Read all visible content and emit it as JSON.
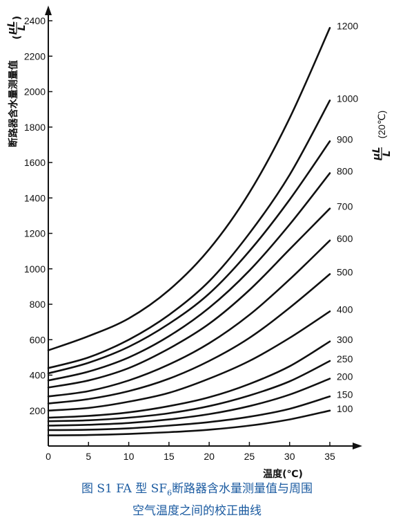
{
  "chart_data": {
    "type": "line",
    "xlabel": "温度(℃)",
    "ylabel": "断路器含水量测量值",
    "ylabel_unit_num": "μL",
    "ylabel_unit_den": "L",
    "series_label_num": "μL",
    "series_label_den": "L",
    "series_label_suffix": "(20℃)",
    "xlim": [
      0,
      35
    ],
    "ylim": [
      0,
      2400
    ],
    "x_ticks": [
      "0",
      "5",
      "10",
      "15",
      "20",
      "25",
      "30",
      "35"
    ],
    "y_ticks": [
      "200",
      "400",
      "600",
      "800",
      "1000",
      "1200",
      "1400",
      "1600",
      "1800",
      "2000",
      "2200",
      "2400"
    ],
    "x": [
      0,
      5,
      10,
      15,
      20,
      25,
      30,
      35
    ],
    "series": [
      {
        "name": "1200",
        "values": [
          540,
          620,
          720,
          880,
          1110,
          1430,
          1850,
          2360
        ]
      },
      {
        "name": "1000",
        "values": [
          440,
          500,
          600,
          740,
          930,
          1200,
          1530,
          1950
        ]
      },
      {
        "name": "900",
        "values": [
          410,
          470,
          560,
          690,
          860,
          1100,
          1390,
          1720
        ]
      },
      {
        "name": "800",
        "values": [
          370,
          420,
          500,
          620,
          780,
          990,
          1250,
          1540
        ]
      },
      {
        "name": "700",
        "values": [
          330,
          370,
          440,
          550,
          690,
          880,
          1110,
          1340
        ]
      },
      {
        "name": "600",
        "values": [
          280,
          310,
          370,
          460,
          580,
          740,
          940,
          1160
        ]
      },
      {
        "name": "500",
        "values": [
          240,
          265,
          310,
          380,
          480,
          610,
          780,
          970
        ]
      },
      {
        "name": "400",
        "values": [
          200,
          215,
          250,
          300,
          380,
          480,
          610,
          760
        ]
      },
      {
        "name": "300",
        "values": [
          160,
          170,
          190,
          225,
          275,
          350,
          450,
          590
        ]
      },
      {
        "name": "250",
        "values": [
          140,
          145,
          160,
          185,
          225,
          285,
          365,
          480
        ]
      },
      {
        "name": "200",
        "values": [
          115,
          120,
          130,
          150,
          180,
          225,
          290,
          380
        ]
      },
      {
        "name": "150",
        "values": [
          90,
          92,
          100,
          115,
          135,
          165,
          210,
          280
        ]
      },
      {
        "name": "100",
        "values": [
          60,
          62,
          68,
          78,
          92,
          115,
          150,
          200
        ]
      }
    ]
  },
  "caption": {
    "line1_prefix": "图 S1    FA 型 SF",
    "line1_sub": "6",
    "line1_suffix": "断路器含水量测量值与周围",
    "line2": "空气温度之间的校正曲线"
  }
}
